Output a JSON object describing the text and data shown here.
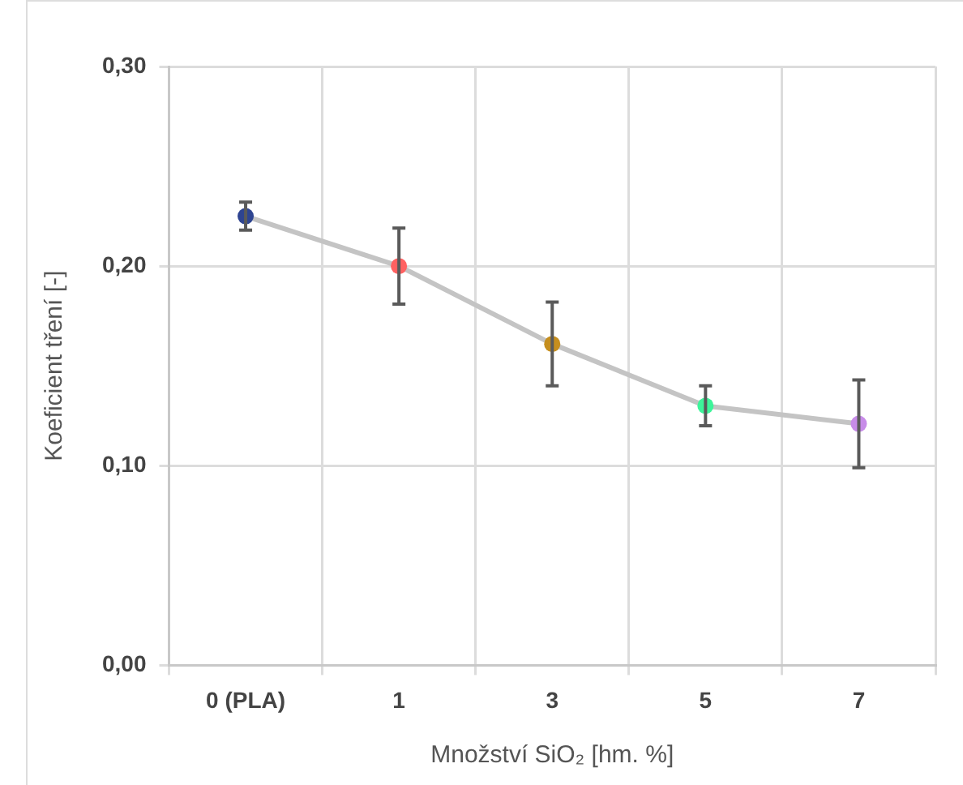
{
  "chart_data": {
    "type": "line",
    "xlabel": "Množství SiO₂ [hm. %]",
    "ylabel": "Koeficient tření [-]",
    "categories": [
      "0 (PLA)",
      "1",
      "3",
      "5",
      "7"
    ],
    "series": [
      {
        "color": "#c4c4c4",
        "colors": [
          "#2e4491",
          "#ff6161",
          "#c58e1e",
          "#3df59a",
          "#c78ce8"
        ],
        "values": [
          0.225,
          0.2,
          0.161,
          0.13,
          0.121
        ],
        "errors": [
          0.007,
          0.019,
          0.021,
          0.01,
          0.022
        ]
      }
    ],
    "ylim": [
      0,
      0.3
    ],
    "yticks": [
      {
        "value": 0,
        "label": "0,00"
      },
      {
        "value": 0.1,
        "label": "0,10"
      },
      {
        "value": 0.2,
        "label": "0,20"
      },
      {
        "value": 0.3,
        "label": "0,30"
      }
    ],
    "grid": true,
    "legend": false,
    "marker": "circle",
    "line_style": "solid"
  }
}
